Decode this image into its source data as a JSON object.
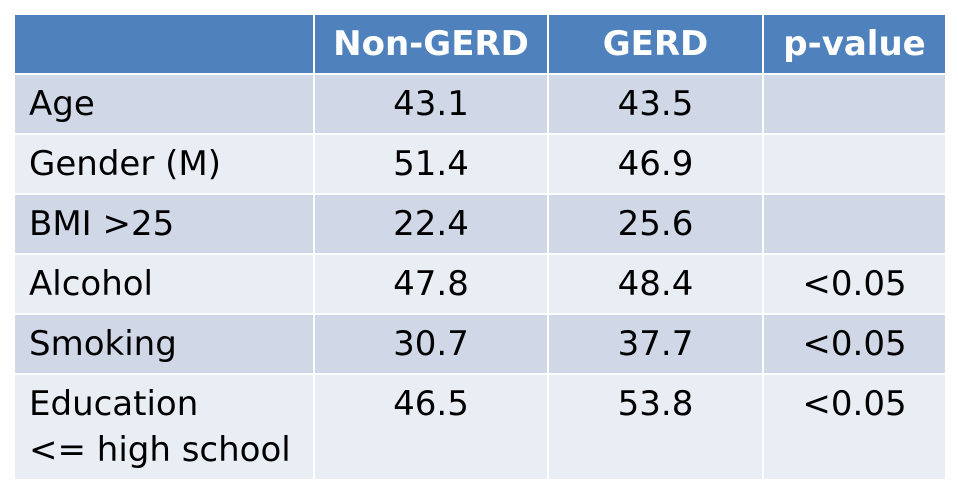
{
  "table": {
    "headers": [
      "",
      "Non-GERD",
      "GERD",
      "p-value"
    ],
    "rows": [
      {
        "label": [
          "Age"
        ],
        "non_gerd": "43.1",
        "gerd": "43.5",
        "p_value": ""
      },
      {
        "label": [
          "Gender (M)"
        ],
        "non_gerd": "51.4",
        "gerd": "46.9",
        "p_value": ""
      },
      {
        "label": [
          "BMI >25"
        ],
        "non_gerd": "22.4",
        "gerd": "25.6",
        "p_value": ""
      },
      {
        "label": [
          "Alcohol"
        ],
        "non_gerd": "47.8",
        "gerd": "48.4",
        "p_value": "<0.05"
      },
      {
        "label": [
          "Smoking"
        ],
        "non_gerd": "30.7",
        "gerd": "37.7",
        "p_value": "<0.05"
      },
      {
        "label": [
          "Education",
          "<= high school"
        ],
        "non_gerd": "46.5",
        "gerd": "53.8",
        "p_value": "<0.05"
      }
    ]
  },
  "colors": {
    "header_bg": "#4f81bd",
    "header_text": "#ffffff",
    "row_odd_bg": "#d0d8e8",
    "row_even_bg": "#e9edf4",
    "grid_line": "#ffffff"
  }
}
